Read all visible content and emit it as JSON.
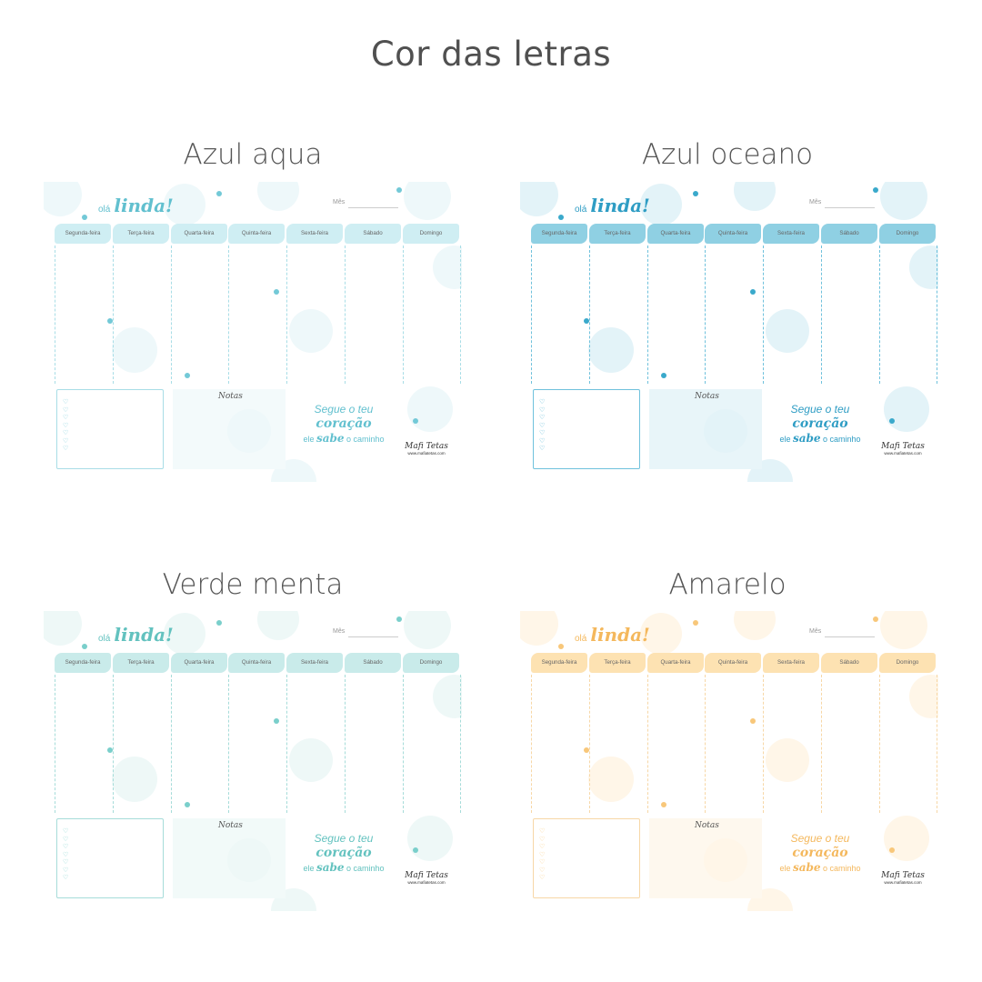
{
  "page_title": "Cor das letras",
  "common": {
    "greeting_small": "olá",
    "greeting_script": "linda!",
    "month_label": "Mês",
    "days": [
      "Segunda-feira",
      "Terça-feira",
      "Quarta-feira",
      "Quinta-feira",
      "Sexta-feira",
      "Sábado",
      "Domingo"
    ],
    "notes_label": "Notas",
    "hearts": "♡♡♡♡♡♡♡",
    "quote_line1": "Segue o teu",
    "quote_line2": "coração",
    "quote_line3a": "ele ",
    "quote_line3b": "sabe",
    "quote_line3c": " o caminho",
    "brand": "Mafi Tetas",
    "brand_url": "www.mafiatetas.com"
  },
  "variants": [
    {
      "label": "Azul aqua",
      "colors": {
        "tab": "#cfeef3",
        "accent": "#73c9d7",
        "bubble": "#eef8fa",
        "notes": "#f3fafb",
        "line": "#a8dde6",
        "text": "#62c0cf"
      }
    },
    {
      "label": "Azul oceano",
      "colors": {
        "tab": "#8fd0e3",
        "accent": "#3aa9cb",
        "bubble": "#e3f3f8",
        "notes": "#e8f5f9",
        "line": "#6fc1dc",
        "text": "#2f9dc4"
      }
    },
    {
      "label": "Verde menta",
      "colors": {
        "tab": "#c9ebea",
        "accent": "#7acfcb",
        "bubble": "#eef8f7",
        "notes": "#f2faf9",
        "line": "#a6dcd9",
        "text": "#63c2bf"
      }
    },
    {
      "label": "Amarelo",
      "colors": {
        "tab": "#fde2b2",
        "accent": "#f8c77a",
        "bubble": "#fff6e8",
        "notes": "#fef8ee",
        "line": "#f7d7a6",
        "text": "#f4b85d"
      }
    }
  ]
}
